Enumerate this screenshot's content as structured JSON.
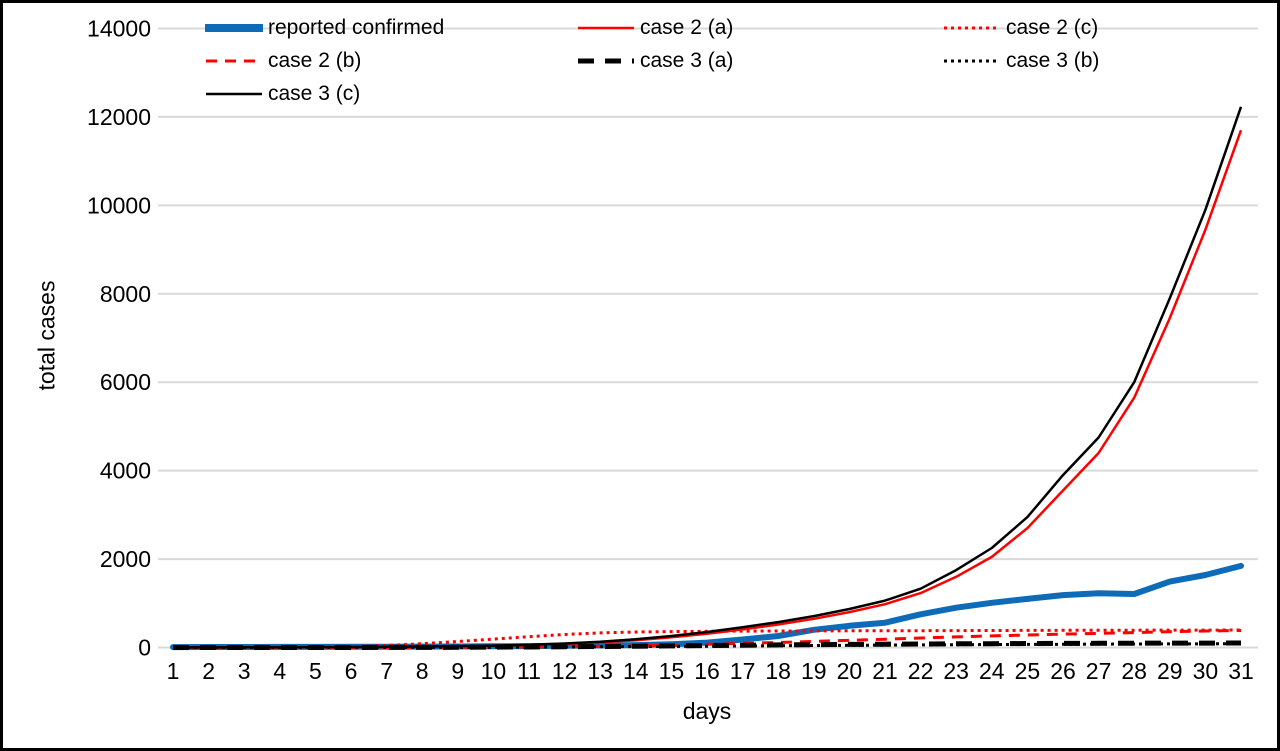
{
  "frame": {
    "background": "#ffffff",
    "border_color": "#000000"
  },
  "chart_data": {
    "type": "line",
    "title": "",
    "xlabel": "days",
    "ylabel": "total cases",
    "x": [
      1,
      2,
      3,
      4,
      5,
      6,
      7,
      8,
      9,
      10,
      11,
      12,
      13,
      14,
      15,
      16,
      17,
      18,
      19,
      20,
      21,
      22,
      23,
      24,
      25,
      26,
      27,
      28,
      29,
      30,
      31
    ],
    "xticks": [
      1,
      2,
      3,
      4,
      5,
      6,
      7,
      8,
      9,
      10,
      11,
      12,
      13,
      14,
      15,
      16,
      17,
      18,
      19,
      20,
      21,
      22,
      23,
      24,
      25,
      26,
      27,
      28,
      29,
      30,
      31
    ],
    "yticks": [
      0,
      2000,
      4000,
      6000,
      8000,
      10000,
      12000,
      14000
    ],
    "ylim": [
      0,
      14000
    ],
    "grid": "horizontal-only",
    "gridline_color": "#d9d9d9",
    "text_color": "#000000",
    "legend_position": "top",
    "legend_order": [
      "reported",
      "case2a",
      "case2c",
      "case2b",
      "case3a",
      "case3b",
      "case3c"
    ],
    "series": [
      {
        "id": "reported",
        "name": "reported confirmed",
        "color": "#0d6bb8",
        "style": "solid-thick",
        "values": [
          10,
          11,
          12,
          13,
          14,
          16,
          18,
          20,
          23,
          27,
          32,
          38,
          45,
          55,
          75,
          110,
          180,
          260,
          400,
          490,
          560,
          750,
          900,
          1010,
          1100,
          1185,
          1225,
          1210,
          1490,
          1640,
          1845
        ]
      },
      {
        "id": "case2a",
        "name": "case 2 (a)",
        "color": "#ff0000",
        "style": "solid",
        "values": [
          2,
          3,
          4,
          5,
          7,
          10,
          14,
          19,
          27,
          38,
          55,
          80,
          115,
          165,
          230,
          310,
          410,
          520,
          650,
          800,
          980,
          1230,
          1600,
          2050,
          2700,
          3550,
          4400,
          5650,
          7450,
          9450,
          11700
        ]
      },
      {
        "id": "case2b",
        "name": "case 2 (b)",
        "color": "#ff0000",
        "style": "dashed",
        "values": [
          0,
          0,
          0,
          0,
          1,
          1,
          2,
          3,
          5,
          8,
          12,
          18,
          28,
          40,
          55,
          72,
          92,
          113,
          137,
          162,
          188,
          214,
          240,
          262,
          283,
          302,
          320,
          338,
          357,
          373,
          385
        ]
      },
      {
        "id": "case2c",
        "name": "case 2 (c)",
        "color": "#ff0000",
        "style": "dotted",
        "values": [
          0,
          0,
          1,
          3,
          8,
          20,
          45,
          85,
          135,
          190,
          245,
          295,
          330,
          350,
          360,
          366,
          370,
          373,
          375,
          377,
          379,
          381,
          383,
          385,
          387,
          388,
          390,
          391,
          393,
          394,
          395
        ]
      },
      {
        "id": "case3a",
        "name": "case 3 (a)",
        "color": "#000000",
        "style": "dashed-thick",
        "values": [
          0,
          0,
          0,
          0,
          1,
          1,
          2,
          3,
          5,
          8,
          12,
          17,
          23,
          30,
          37,
          44,
          51,
          58,
          64,
          70,
          75,
          80,
          84,
          87,
          90,
          93,
          95,
          97,
          99,
          100,
          101
        ]
      },
      {
        "id": "case3b",
        "name": "case 3 (b)",
        "color": "#000000",
        "style": "dotted",
        "values": [
          0,
          0,
          0,
          0,
          0,
          1,
          1,
          2,
          3,
          5,
          8,
          11,
          15,
          20,
          25,
          30,
          35,
          40,
          45,
          50,
          55,
          59,
          63,
          67,
          70,
          73,
          76,
          79,
          82,
          84,
          86
        ]
      },
      {
        "id": "case3c",
        "name": "case 3 (c)",
        "color": "#000000",
        "style": "solid",
        "values": [
          2,
          3,
          4,
          6,
          8,
          12,
          16,
          22,
          31,
          44,
          62,
          90,
          130,
          185,
          260,
          350,
          460,
          575,
          710,
          870,
          1060,
          1330,
          1750,
          2250,
          2950,
          3900,
          4750,
          6000,
          7900,
          9900,
          12230
        ]
      }
    ]
  }
}
